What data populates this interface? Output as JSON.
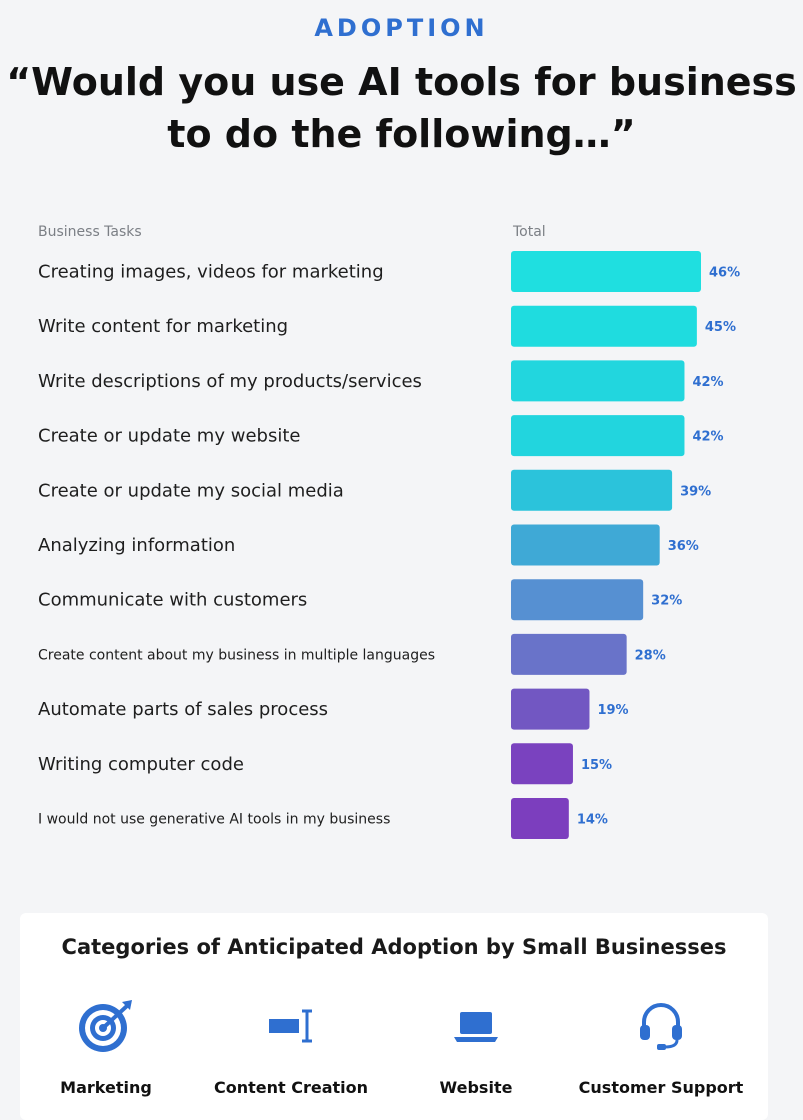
{
  "header": {
    "eyebrow": "ADOPTION",
    "title_line1": "“Would you use AI tools for business",
    "title_line2": "to do the following…”"
  },
  "chart_data": {
    "type": "bar",
    "orientation": "horizontal",
    "column_headers": {
      "category": "Business Tasks",
      "value": "Total"
    },
    "categories": [
      "Creating images, videos for marketing",
      "Write content for marketing",
      "Write descriptions of my products/services",
      "Create or update my website",
      "Create or update my social media",
      "Analyzing information",
      "Communicate with customers",
      "Create content about my business in multiple languages",
      "Automate parts of sales process",
      "Writing computer code",
      "I would not use generative AI tools in my business"
    ],
    "values": [
      46,
      45,
      42,
      42,
      39,
      36,
      32,
      28,
      19,
      15,
      14
    ],
    "value_labels": [
      "46%",
      "45%",
      "42%",
      "42%",
      "39%",
      "36%",
      "32%",
      "28%",
      "19%",
      "15%",
      "14%"
    ],
    "bar_colors": [
      "#1fdfe0",
      "#1fdcdf",
      "#22d6de",
      "#22d5de",
      "#2bc3db",
      "#3fa9d6",
      "#5690d2",
      "#6973c9",
      "#7257c2",
      "#7a42bf",
      "#7c3ebe"
    ],
    "value_label_color": "#2f6fd0",
    "xlim": [
      0,
      50
    ]
  },
  "categories_panel": {
    "title": "Categories of Anticipated Adoption by Small Businesses",
    "items": [
      {
        "label": "Marketing",
        "icon": "target-icon"
      },
      {
        "label": "Content Creation",
        "icon": "text-cursor-icon"
      },
      {
        "label": "Website",
        "icon": "laptop-icon"
      },
      {
        "label": "Customer Support",
        "icon": "headset-icon"
      }
    ],
    "icon_color": "#2f6fd0"
  }
}
